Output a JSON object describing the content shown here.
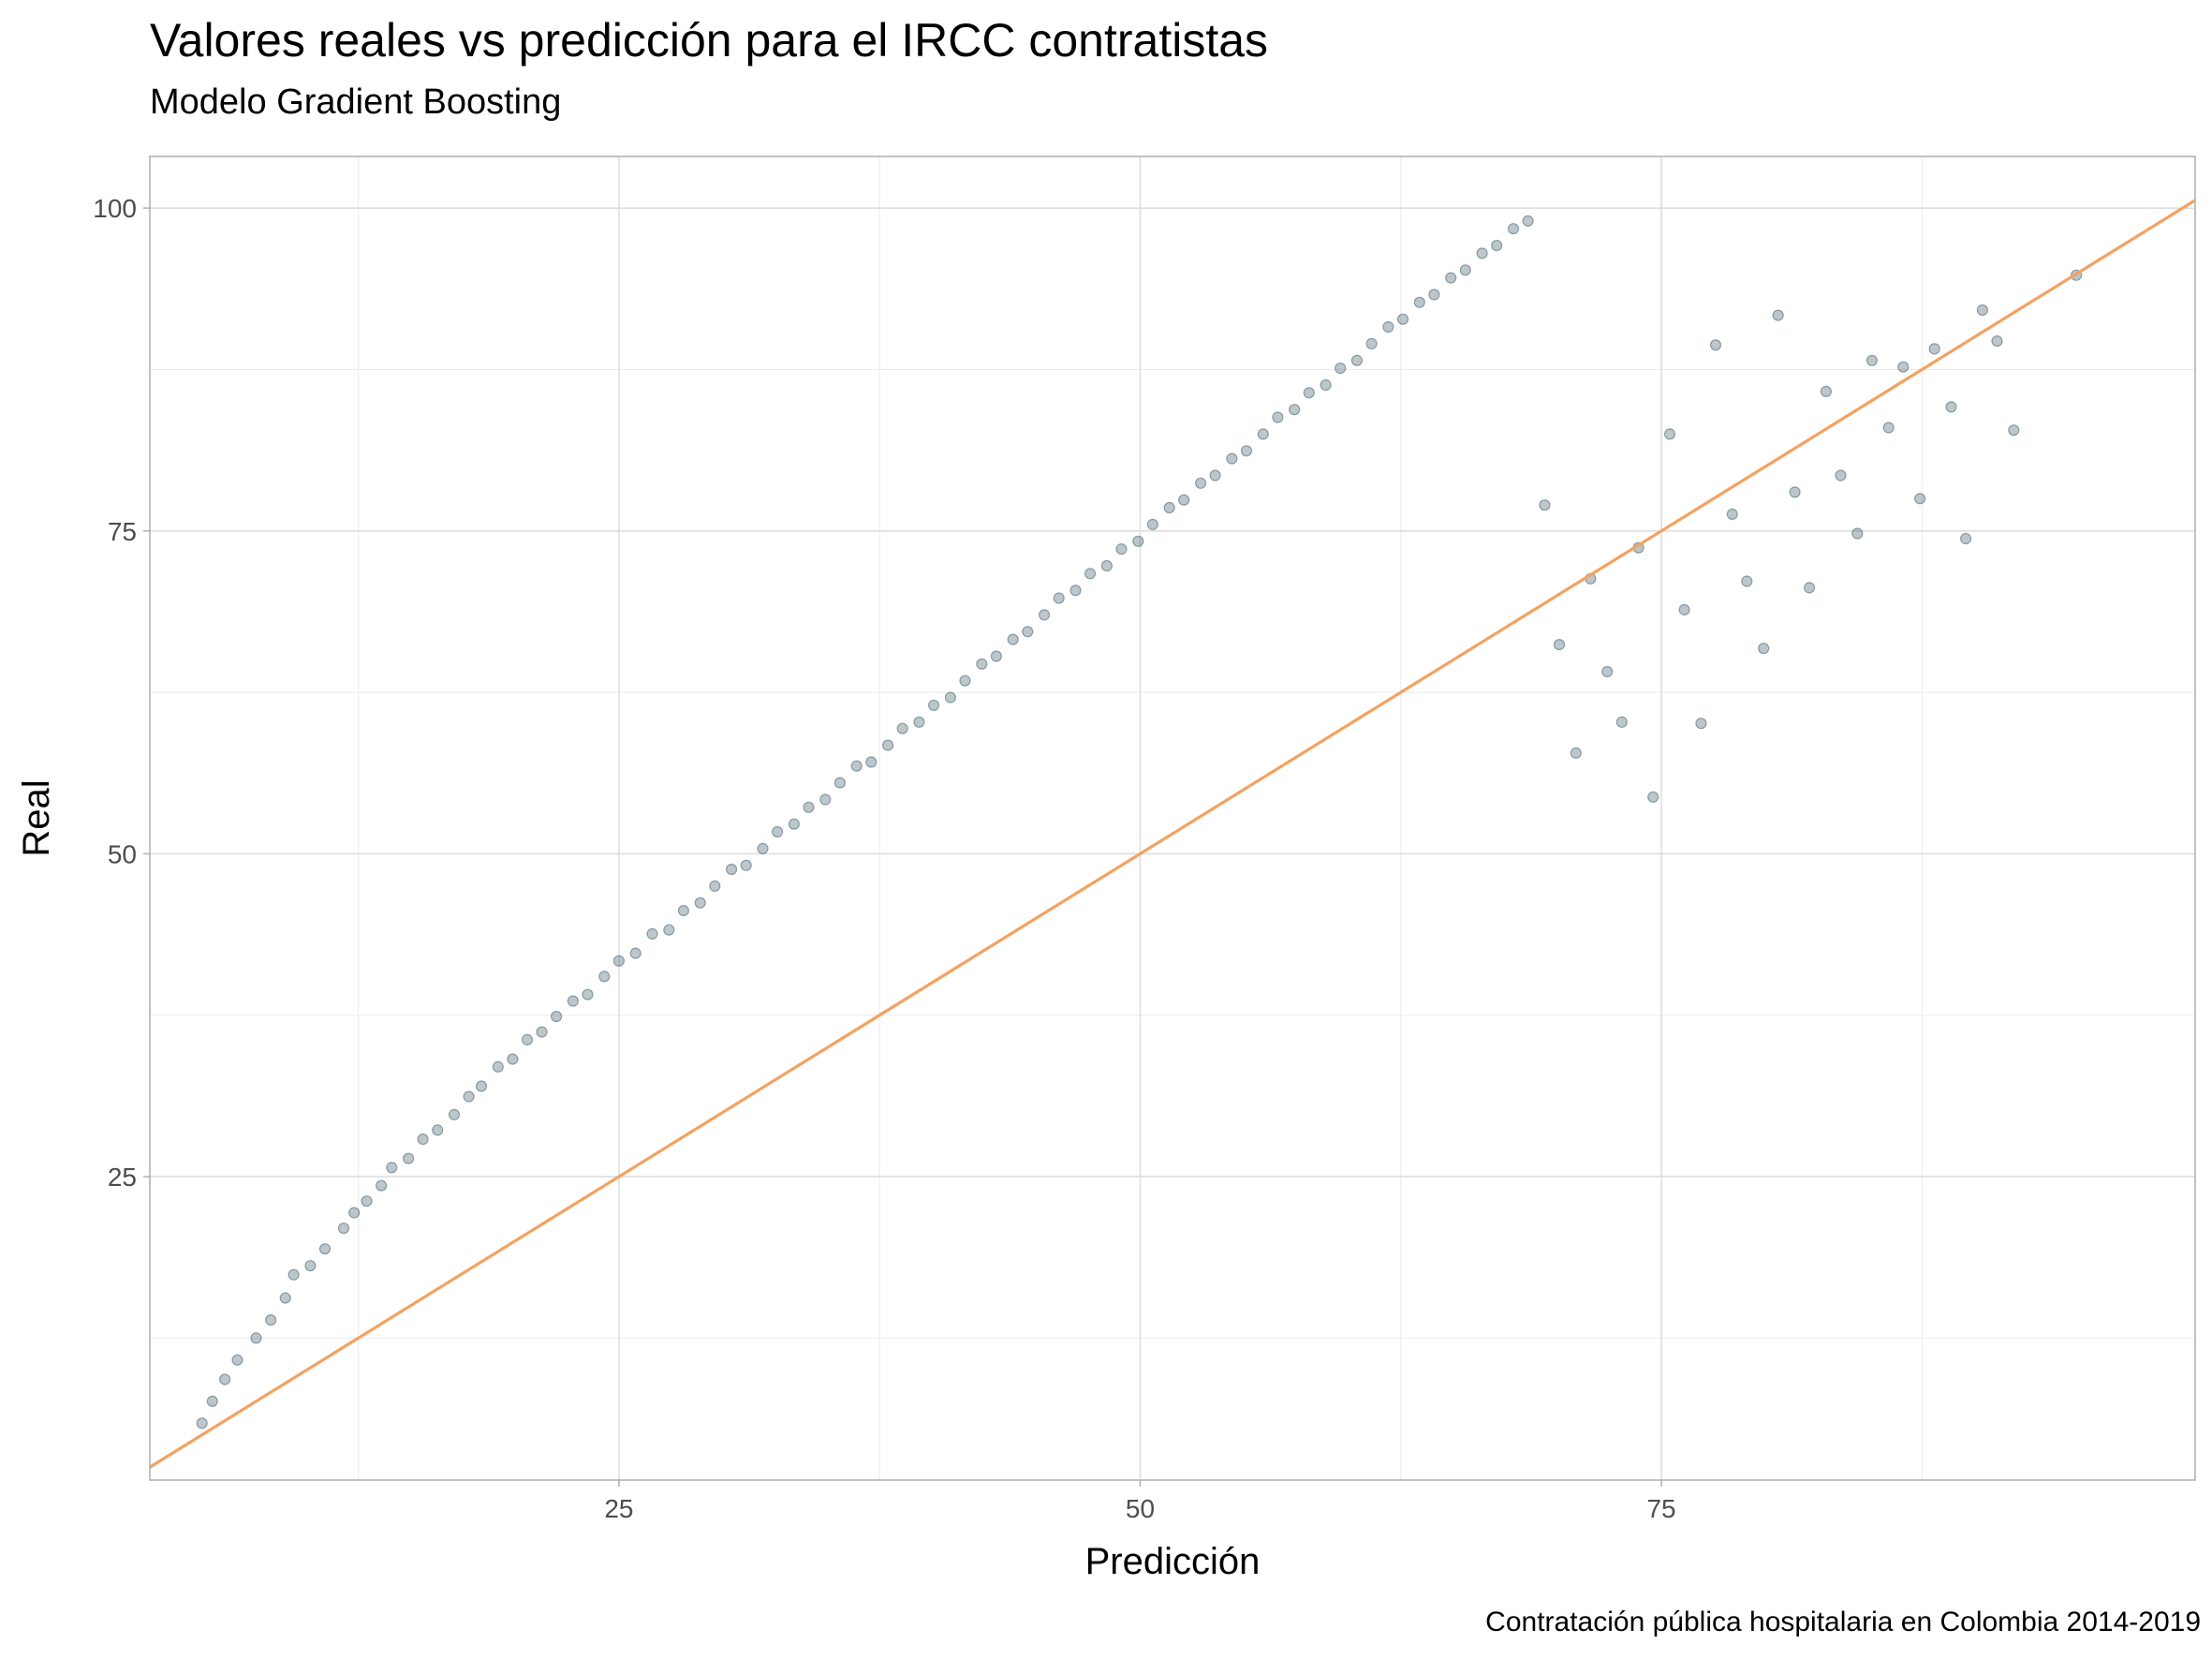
{
  "chart_data": {
    "type": "scatter",
    "title": "Valores reales vs predicción para el IRCC contratistas",
    "subtitle": "Modelo Gradient Boosting",
    "caption": "Contratación pública hospitalaria en Colombia 2014-2019",
    "xlabel": "Predicción",
    "ylabel": "Real",
    "xlim": [
      2.5,
      100.6
    ],
    "ylim": [
      1.5,
      104
    ],
    "x_ticks": [
      25,
      50,
      75
    ],
    "y_ticks": [
      25,
      50,
      75,
      100
    ],
    "grid": true,
    "point_color": "#264653",
    "point_opacity": 0.3,
    "reference_line": {
      "slope": 1,
      "intercept": 0,
      "color": "#F4A261"
    },
    "series": [
      {
        "type": "scatter",
        "x": [
          5.0,
          5.5,
          6.1,
          6.7,
          7.6,
          8.3,
          9.0,
          9.4,
          10.2,
          10.9,
          11.8,
          12.3,
          12.9,
          13.6,
          14.1,
          14.9,
          15.6,
          16.3,
          17.1,
          17.8,
          18.4,
          19.2,
          19.9,
          20.6,
          21.3,
          22.0,
          22.8,
          23.5,
          24.3,
          25.0,
          25.8,
          26.6,
          27.4,
          28.1,
          28.9,
          29.6,
          30.4,
          31.1,
          31.9,
          32.6,
          33.4,
          34.1,
          34.9,
          35.6,
          36.4,
          37.1,
          37.9,
          38.6,
          39.4,
          40.1,
          40.9,
          41.6,
          42.4,
          43.1,
          43.9,
          44.6,
          45.4,
          46.1,
          46.9,
          47.6,
          48.4,
          49.1,
          49.9,
          50.6,
          51.4,
          52.1,
          52.9,
          53.6,
          54.4,
          55.1,
          55.9,
          56.6,
          57.4,
          58.1,
          58.9,
          59.6,
          60.4,
          61.1,
          61.9,
          62.6,
          63.4,
          64.1,
          64.9,
          65.6,
          66.4,
          67.1,
          67.9,
          68.6,
          69.4,
          70.1,
          70.9,
          71.6,
          72.4,
          73.1,
          73.9,
          74.6,
          75.4,
          76.1,
          76.9,
          77.6,
          78.4,
          79.1,
          79.9,
          80.6,
          81.4,
          82.1,
          82.9,
          83.6,
          84.4,
          85.1,
          85.9,
          86.6,
          87.4,
          88.1,
          88.9,
          89.6,
          90.4,
          91.1,
          91.9,
          94.9
        ],
        "y": [
          5.9,
          7.6,
          9.3,
          10.8,
          12.5,
          13.9,
          15.6,
          17.4,
          18.1,
          19.4,
          21.0,
          22.2,
          23.1,
          24.3,
          25.7,
          26.4,
          27.9,
          28.6,
          29.8,
          31.2,
          32.0,
          33.5,
          34.1,
          35.6,
          36.2,
          37.4,
          38.6,
          39.1,
          40.5,
          41.7,
          42.3,
          43.8,
          44.1,
          45.6,
          46.2,
          47.5,
          48.8,
          49.1,
          50.4,
          51.7,
          52.3,
          53.6,
          54.2,
          55.5,
          56.8,
          57.1,
          58.4,
          59.7,
          60.2,
          61.5,
          62.1,
          63.4,
          64.7,
          65.3,
          66.6,
          67.2,
          68.5,
          69.8,
          70.4,
          71.7,
          72.3,
          73.6,
          74.2,
          75.5,
          76.8,
          77.4,
          78.7,
          79.3,
          80.6,
          81.2,
          82.5,
          83.8,
          84.4,
          85.7,
          86.3,
          87.6,
          88.2,
          89.5,
          90.8,
          91.4,
          92.7,
          93.3,
          94.6,
          95.2,
          96.5,
          97.1,
          98.4,
          99.0,
          77.0,
          66.2,
          57.8,
          71.3,
          64.1,
          60.2,
          73.7,
          54.4,
          82.5,
          68.9,
          60.1,
          89.4,
          76.3,
          71.1,
          65.9,
          91.7,
          78.0,
          70.6,
          85.8,
          79.3,
          74.8,
          88.2,
          83.0,
          87.7,
          77.5,
          89.1,
          84.6,
          74.4,
          92.1,
          89.7,
          82.8,
          94.8
        ]
      }
    ]
  }
}
